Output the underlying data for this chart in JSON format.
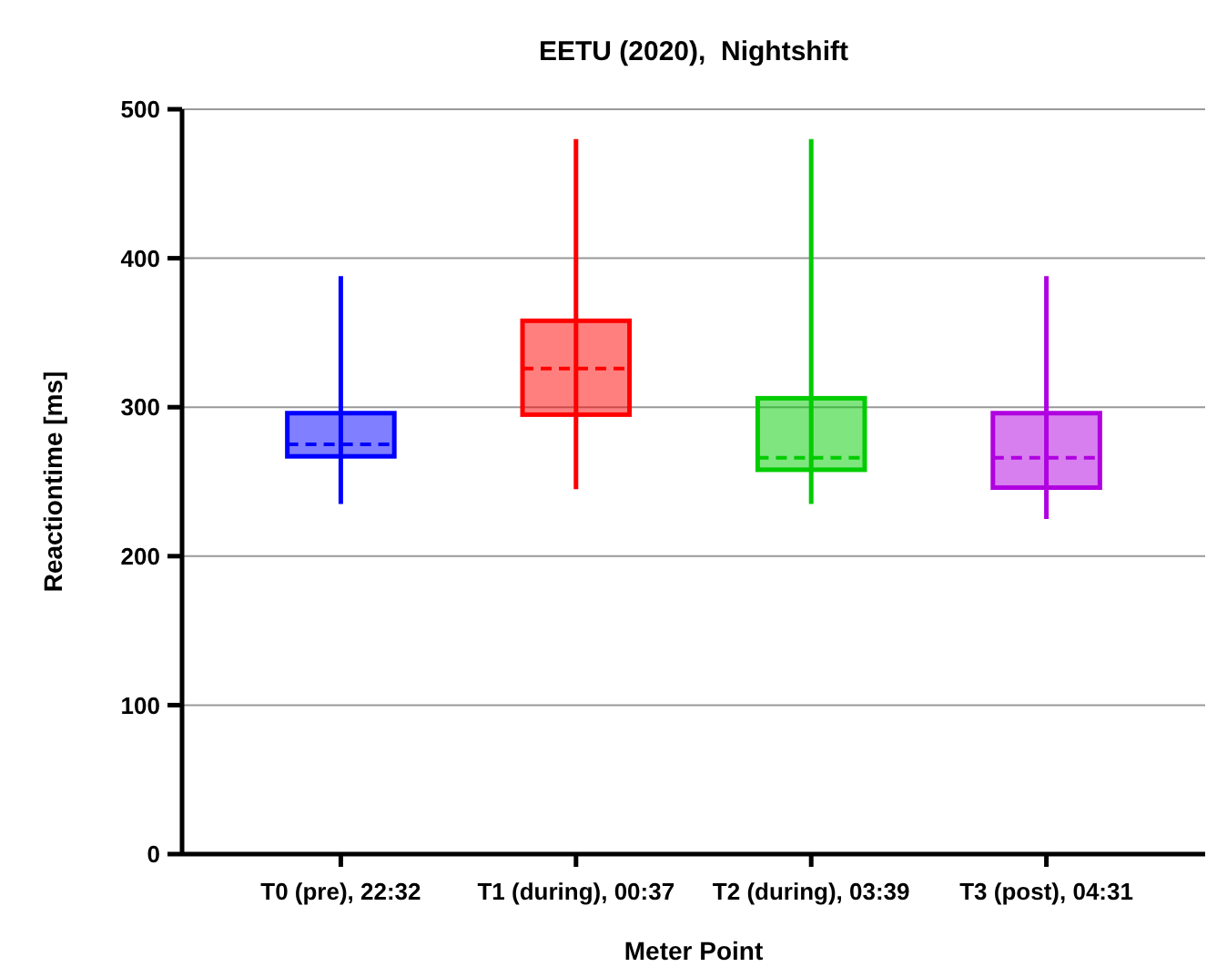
{
  "chart_data": {
    "type": "box",
    "title": "EETU (2020),  Nightshift",
    "xlabel": "Meter Point",
    "ylabel": "Reactiontime [ms]",
    "categories": [
      "T0 (pre), 22:32",
      "T1 (during), 00:37",
      "T2 (during), 03:39",
      "T3 (post), 04:31"
    ],
    "colors": [
      "#0000ff",
      "#ff0000",
      "#00cc00",
      "#b000e0"
    ],
    "boxes": [
      {
        "low": 235,
        "q1": 267,
        "median": 275,
        "q3": 296,
        "high": 388
      },
      {
        "low": 245,
        "q1": 295,
        "median": 326,
        "q3": 358,
        "high": 480
      },
      {
        "low": 235,
        "q1": 258,
        "median": 266,
        "q3": 306,
        "high": 480
      },
      {
        "low": 225,
        "q1": 246,
        "median": 266,
        "q3": 296,
        "high": 388
      }
    ],
    "ylim": [
      0,
      500
    ],
    "yticks": [
      0,
      100,
      200,
      300,
      400,
      500
    ],
    "grid": "y"
  }
}
